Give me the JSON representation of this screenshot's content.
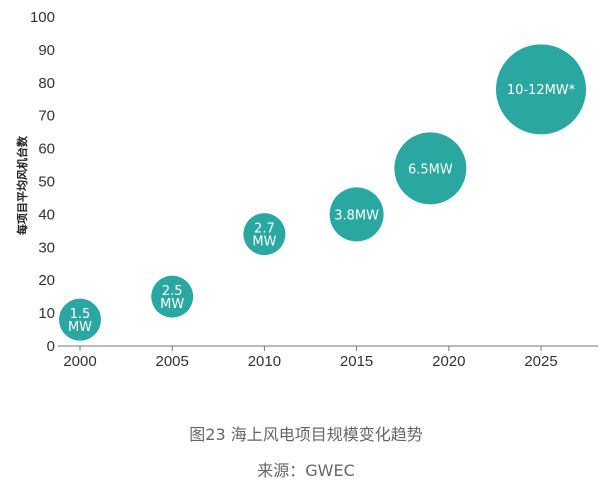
{
  "chart_data": {
    "type": "scatter",
    "ylabel": "每项目平均风机台数",
    "xlabel": "",
    "ylim": [
      0,
      100
    ],
    "yticks": [
      0,
      10,
      20,
      30,
      40,
      50,
      60,
      70,
      80,
      90,
      100
    ],
    "xticks": [
      "2000",
      "2005",
      "2010",
      "2015",
      "2020",
      "2025"
    ],
    "grid": false,
    "color": "#2aa7a1",
    "points": [
      {
        "x": 2000,
        "y": 8,
        "label": "1.5\nMW",
        "size": "small"
      },
      {
        "x": 2005,
        "y": 15,
        "label": "2.5\nMW",
        "size": "small"
      },
      {
        "x": 2010,
        "y": 34,
        "label": "2.7\nMW",
        "size": "small"
      },
      {
        "x": 2015,
        "y": 40,
        "label": "3.8MW",
        "size": "medium"
      },
      {
        "x": 2019,
        "y": 54,
        "label": "6.5MW",
        "size": "large"
      },
      {
        "x": 2025,
        "y": 78,
        "label": "10-12MW*",
        "size": "xlarge"
      }
    ]
  },
  "caption": {
    "figure": "图23  海上风电项目规模变化趋势",
    "source": "来源：GWEC"
  }
}
